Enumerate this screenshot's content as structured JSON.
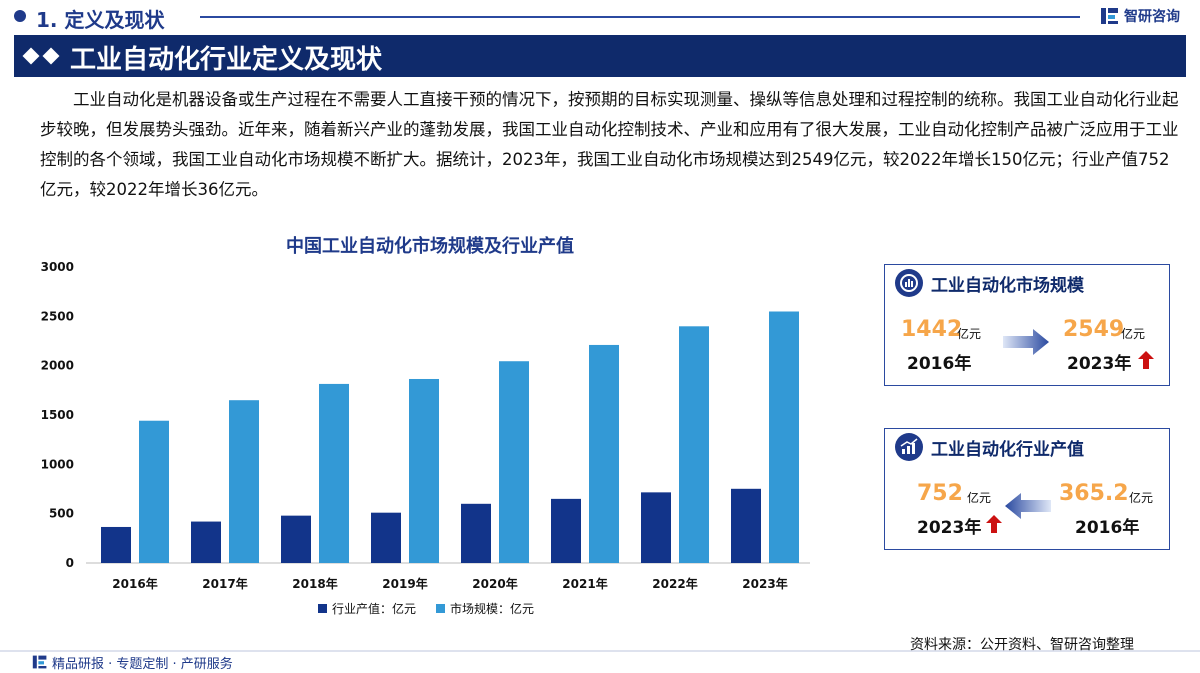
{
  "section": {
    "number_title": "1. 定义及现状"
  },
  "brand": {
    "name": "智研咨询"
  },
  "banner": {
    "title": "工业自动化行业定义及现状"
  },
  "intro": {
    "text": "工业自动化是机器设备或生产过程在不需要人工直接干预的情况下，按预期的目标实现测量、操纵等信息处理和过程控制的统称。我国工业自动化行业起步较晚，但发展势头强劲。近年来，随着新兴产业的蓬勃发展，我国工业自动化控制技术、产业和应用有了很大发展，工业自动化控制产品被广泛应用于工业控制的各个领域，我国工业自动化市场规模不断扩大。据统计，2023年，我国工业自动化市场规模达到2549亿元，较2022年增长150亿元；行业产值752亿元，较2022年增长36亿元。"
  },
  "chart_data": {
    "type": "bar",
    "title": "中国工业自动化市场规模及行业产值",
    "categories": [
      "2016年",
      "2017年",
      "2018年",
      "2019年",
      "2020年",
      "2021年",
      "2022年",
      "2023年"
    ],
    "series": [
      {
        "name": "行业产值：亿元",
        "color": "#12348a",
        "values": [
          365.2,
          420,
          480,
          510,
          600,
          650,
          716,
          752
        ]
      },
      {
        "name": "市场规模：亿元",
        "color": "#3399d6",
        "values": [
          1442,
          1650,
          1815,
          1865,
          2045,
          2210,
          2399,
          2549
        ]
      }
    ],
    "ylim": [
      0,
      3000
    ],
    "yticks": [
      "0",
      "500",
      "1000",
      "1500",
      "2000",
      "2500",
      "3000"
    ],
    "legend_position": "bottom-center",
    "grid": false
  },
  "cards": {
    "market": {
      "title": "工业自动化市场规模",
      "from_value": "1442",
      "from_unit": "亿元",
      "from_year": "2016年",
      "to_value": "2549",
      "to_unit": "亿元",
      "to_year": "2023年"
    },
    "output": {
      "title": "工业自动化行业产值",
      "left_value": "752",
      "left_unit": "亿元",
      "left_year": "2023年",
      "right_value": "365.2",
      "right_unit": "亿元",
      "right_year": "2016年"
    }
  },
  "source": {
    "text": "资料来源：公开资料、智研咨询整理"
  },
  "footer": {
    "text": "精品研报 · 专题定制 · 产研服务"
  },
  "colors": {
    "navy": "#0f2a6b",
    "accent_orange": "#f6a64a",
    "up_red": "#cc1111"
  }
}
